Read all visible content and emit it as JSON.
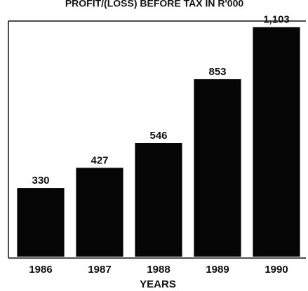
{
  "chart_data": {
    "type": "bar",
    "title": "PROFIT/(LOSS) BEFORE TAX IN R'000",
    "x_label": "YEARS",
    "categories": [
      "1986",
      "1987",
      "1988",
      "1989",
      "1990"
    ],
    "values": [
      330,
      427,
      546,
      853,
      1103
    ],
    "value_labels": [
      "330",
      "427",
      "546",
      "853",
      "1,103"
    ],
    "color": "#050505",
    "ylim": [
      0,
      1200
    ]
  }
}
